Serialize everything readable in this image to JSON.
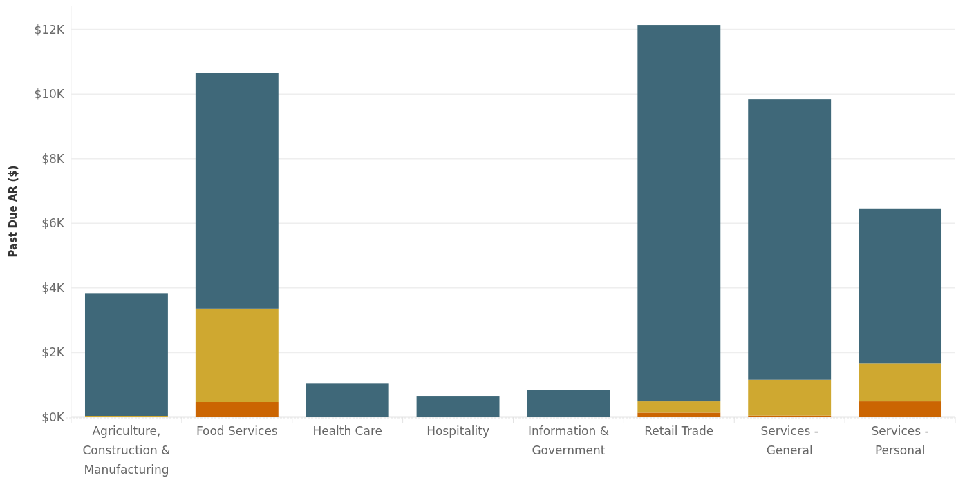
{
  "chart_data": {
    "type": "bar",
    "ylabel": "Past Due AR ($)",
    "stacked": true,
    "grid": "y",
    "categories": [
      "Agriculture, Construction & Manufacturing",
      "Food Services",
      "Health Care",
      "Hospitality",
      "Information & Government",
      "Retail Trade",
      "Services - General",
      "Services - Personal"
    ],
    "series": [
      {
        "color": "#cb6502",
        "values": [
          0,
          0.47,
          0,
          0,
          0,
          0.14,
          0.05,
          0.49
        ]
      },
      {
        "color": "#cfa830",
        "values": [
          0.03,
          2.89,
          0,
          0,
          0,
          0.35,
          1.11,
          1.17
        ]
      },
      {
        "color": "#3f6879",
        "values": [
          3.81,
          7.29,
          1.04,
          0.64,
          0.85,
          11.65,
          8.67,
          4.8
        ]
      }
    ],
    "ylim": [
      0,
      12.74
    ],
    "yticks": [
      {
        "value": 0,
        "label": "$0K"
      },
      {
        "value": 2,
        "label": "$2K"
      },
      {
        "value": 4,
        "label": "$4K"
      },
      {
        "value": 6,
        "label": "$6K"
      },
      {
        "value": 8,
        "label": "$8K"
      },
      {
        "value": 10,
        "label": "$10K"
      },
      {
        "value": 12,
        "label": "$12K"
      }
    ]
  }
}
